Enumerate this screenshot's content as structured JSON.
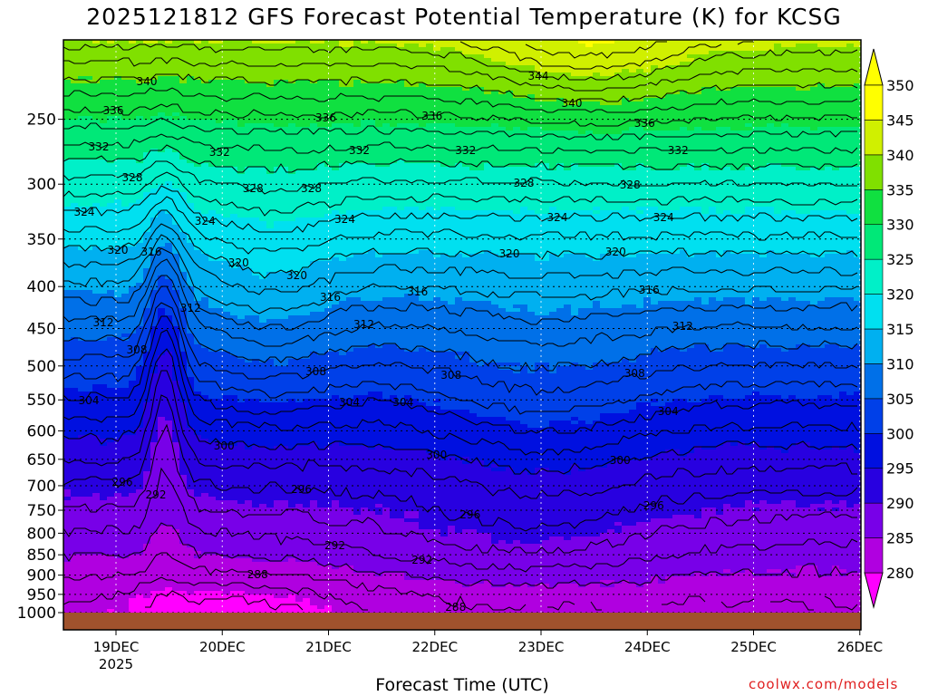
{
  "title": "2025121812 GFS Forecast Potential Temperature (K) for KCSG",
  "credit": "coolwx.com/models",
  "chart_data": {
    "type": "heatmap",
    "title": "2025121812 GFS Forecast Potential Temperature (K) for KCSG",
    "xlabel": "Forecast Time (UTC)",
    "ylabel": "",
    "x_ticks": [
      "19DEC",
      "20DEC",
      "21DEC",
      "22DEC",
      "23DEC",
      "24DEC",
      "25DEC",
      "26DEC"
    ],
    "x_tick_sub": "2025",
    "y_ticks": [
      250,
      300,
      350,
      400,
      450,
      500,
      550,
      600,
      650,
      700,
      750,
      800,
      850,
      900,
      950,
      1000
    ],
    "ylim": [
      1000,
      200
    ],
    "y_scale": "log-pressure",
    "grid": true,
    "colorbar": {
      "levels": [
        280,
        285,
        290,
        295,
        300,
        305,
        310,
        315,
        320,
        325,
        330,
        335,
        340,
        345,
        350
      ],
      "colors": [
        "#ff00ff",
        "#b000e0",
        "#7800e8",
        "#2800e0",
        "#0010e0",
        "#0040e8",
        "#0070e8",
        "#00b0f0",
        "#00e0f0",
        "#00f0c8",
        "#00e878",
        "#10e040",
        "#80e000",
        "#d0f000",
        "#ffff00"
      ],
      "extend": "both"
    },
    "contour_labels": [
      {
        "day": "19DEC",
        "level": 336
      },
      {
        "day": "19DEC",
        "level": 340
      },
      {
        "day": "19DEC",
        "level": 332
      },
      {
        "day": "19DEC",
        "level": 328
      },
      {
        "day": "19DEC",
        "level": 324
      },
      {
        "day": "19DEC",
        "level": 320
      },
      {
        "day": "19DEC",
        "level": 316
      },
      {
        "day": "19DEC",
        "level": 312
      },
      {
        "day": "19DEC",
        "level": 308
      },
      {
        "day": "19DEC",
        "level": 304
      },
      {
        "day": "19DEC",
        "level": 296
      },
      {
        "day": "19DEC",
        "level": 292
      },
      {
        "day": "20DEC",
        "level": 332
      },
      {
        "day": "20DEC",
        "level": 328
      },
      {
        "day": "20DEC",
        "level": 324
      },
      {
        "day": "20DEC",
        "level": 320
      },
      {
        "day": "20DEC",
        "level": 312
      },
      {
        "day": "20DEC",
        "level": 300
      },
      {
        "day": "20DEC",
        "level": 288
      },
      {
        "day": "21DEC",
        "level": 336
      },
      {
        "day": "21DEC",
        "level": 332
      },
      {
        "day": "21DEC",
        "level": 328
      },
      {
        "day": "21DEC",
        "level": 324
      },
      {
        "day": "21DEC",
        "level": 320
      },
      {
        "day": "21DEC",
        "level": 316
      },
      {
        "day": "21DEC",
        "level": 312
      },
      {
        "day": "21DEC",
        "level": 308
      },
      {
        "day": "21DEC",
        "level": 304
      },
      {
        "day": "21DEC",
        "level": 296
      },
      {
        "day": "21DEC",
        "level": 292
      },
      {
        "day": "22DEC",
        "level": 336
      },
      {
        "day": "22DEC",
        "level": 332
      },
      {
        "day": "22DEC",
        "level": 316
      },
      {
        "day": "22DEC",
        "level": 308
      },
      {
        "day": "22DEC",
        "level": 304
      },
      {
        "day": "22DEC",
        "level": 300
      },
      {
        "day": "22DEC",
        "level": 296
      },
      {
        "day": "22DEC",
        "level": 292
      },
      {
        "day": "22DEC",
        "level": 288
      },
      {
        "day": "23DEC",
        "level": 344
      },
      {
        "day": "23DEC",
        "level": 340
      },
      {
        "day": "23DEC",
        "level": 328
      },
      {
        "day": "23DEC",
        "level": 324
      },
      {
        "day": "23DEC",
        "level": 320
      },
      {
        "day": "24DEC",
        "level": 336
      },
      {
        "day": "24DEC",
        "level": 332
      },
      {
        "day": "24DEC",
        "level": 328
      },
      {
        "day": "24DEC",
        "level": 324
      },
      {
        "day": "24DEC",
        "level": 320
      },
      {
        "day": "24DEC",
        "level": 316
      },
      {
        "day": "24DEC",
        "level": 312
      },
      {
        "day": "24DEC",
        "level": 308
      },
      {
        "day": "24DEC",
        "level": 304
      },
      {
        "day": "24DEC",
        "level": 300
      },
      {
        "day": "24DEC",
        "level": 296
      }
    ],
    "surface_color": "#a0522d"
  }
}
